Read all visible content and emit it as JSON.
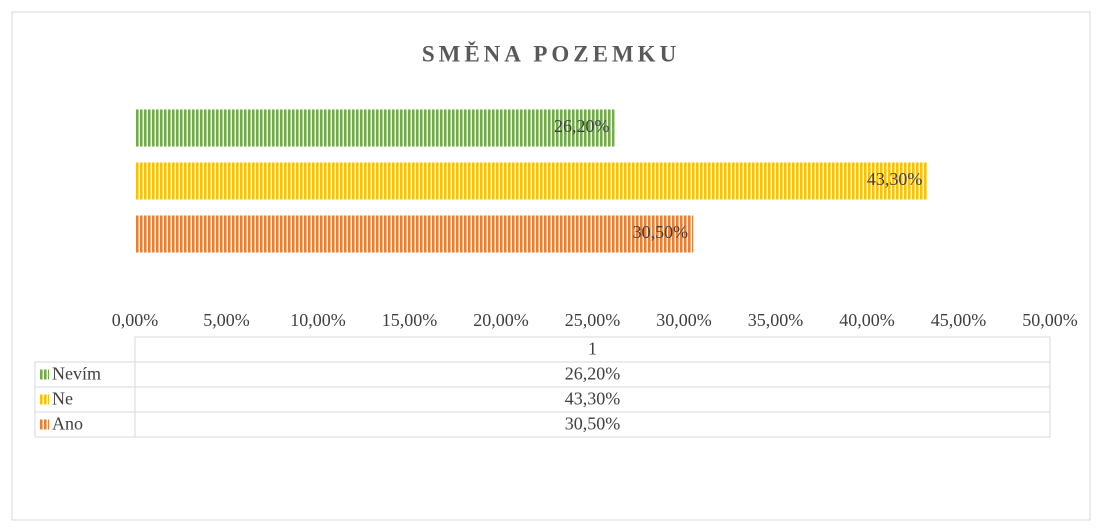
{
  "chart_data": {
    "type": "bar",
    "orientation": "horizontal",
    "title": "SMĚNA POZEMKU",
    "categories": [
      "1"
    ],
    "series": [
      {
        "name": "Nevím",
        "color": "#70ad47",
        "values": [
          26.2
        ],
        "value_labels": [
          "26,20%"
        ]
      },
      {
        "name": "Ne",
        "color": "#ffc000",
        "values": [
          43.3
        ],
        "value_labels": [
          "43,30%"
        ]
      },
      {
        "name": "Ano",
        "color": "#ed7d31",
        "values": [
          30.5
        ],
        "value_labels": [
          "30,50%"
        ]
      }
    ],
    "xlim": [
      0,
      50
    ],
    "xticks": [
      {
        "value": 0,
        "label": "0,00%"
      },
      {
        "value": 5,
        "label": "5,00%"
      },
      {
        "value": 10,
        "label": "10,00%"
      },
      {
        "value": 15,
        "label": "15,00%"
      },
      {
        "value": 20,
        "label": "20,00%"
      },
      {
        "value": 25,
        "label": "25,00%"
      },
      {
        "value": 30,
        "label": "30,00%"
      },
      {
        "value": 35,
        "label": "35,00%"
      },
      {
        "value": 40,
        "label": "40,00%"
      },
      {
        "value": 45,
        "label": "45,00%"
      },
      {
        "value": 50,
        "label": "50,00%"
      }
    ],
    "grid": false,
    "pattern": "vertical-stripes",
    "data_table": true
  }
}
